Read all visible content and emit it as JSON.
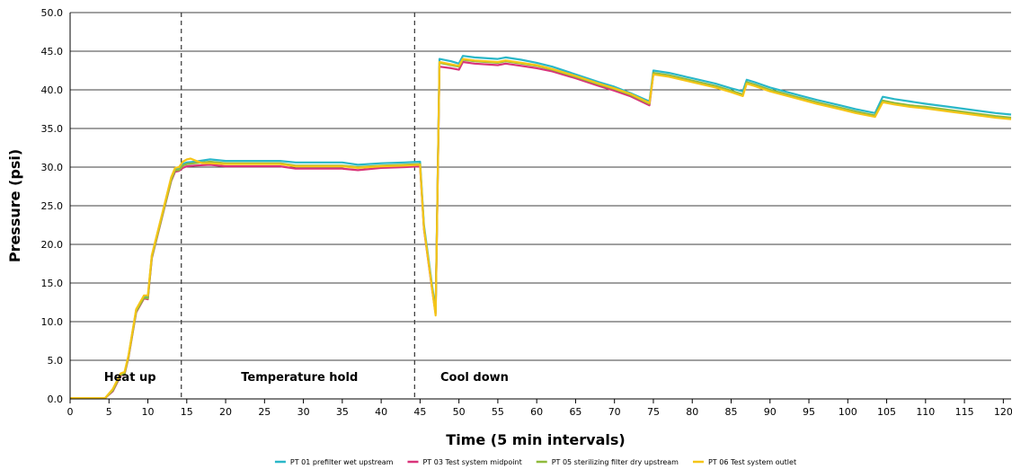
{
  "chart_data": {
    "type": "line",
    "xlabel": "Time (5 min intervals)",
    "ylabel": "Pressure (psi)",
    "xlim": [
      0,
      121
    ],
    "ylim": [
      0,
      50
    ],
    "x_ticks": [
      "0",
      "5",
      "10",
      "15",
      "20",
      "25",
      "30",
      "35",
      "40",
      "45",
      "50",
      "55",
      "60",
      "65",
      "70",
      "75",
      "80",
      "85",
      "90",
      "95",
      "100",
      "105",
      "110",
      "115",
      "120"
    ],
    "y_ticks": [
      "0.0",
      "5.0",
      "10.0",
      "15.0",
      "20.0",
      "25.0",
      "30.0",
      "35.0",
      "40.0",
      "45.0",
      "50.0"
    ],
    "grid": "horizontal",
    "legend_position": "bottom",
    "phase_dividers": [
      14.3,
      44.3
    ],
    "phase_labels": [
      {
        "text": "Heat up",
        "x": 7.7,
        "y": 2.3
      },
      {
        "text": "Temperature hold",
        "x": 29.5,
        "y": 2.3
      },
      {
        "text": "Cool down",
        "x": 52,
        "y": 2.3
      }
    ],
    "series": [
      {
        "name": "PT 01 prefilter wet upstream",
        "color": "#2ab7c8",
        "points": [
          [
            0,
            0.1
          ],
          [
            4.5,
            0.1
          ],
          [
            5.5,
            1.2
          ],
          [
            6.5,
            3.2
          ],
          [
            7,
            3.4
          ],
          [
            7.5,
            5.5
          ],
          [
            8.5,
            11.5
          ],
          [
            9.5,
            13.3
          ],
          [
            10,
            13.2
          ],
          [
            10.5,
            18.5
          ],
          [
            11.5,
            22.5
          ],
          [
            12,
            24.5
          ],
          [
            13,
            28.5
          ],
          [
            13.5,
            29.8
          ],
          [
            14,
            29.8
          ],
          [
            14.5,
            30.4
          ],
          [
            15,
            30.6
          ],
          [
            16,
            30.7
          ],
          [
            18,
            31
          ],
          [
            20,
            30.8
          ],
          [
            22,
            30.8
          ],
          [
            25,
            30.8
          ],
          [
            27,
            30.8
          ],
          [
            29,
            30.6
          ],
          [
            32,
            30.6
          ],
          [
            35,
            30.6
          ],
          [
            37,
            30.3
          ],
          [
            40,
            30.5
          ],
          [
            43,
            30.6
          ],
          [
            45,
            30.7
          ],
          [
            45.5,
            22.5
          ],
          [
            46.5,
            15
          ],
          [
            47,
            11.5
          ],
          [
            47.5,
            44.0
          ],
          [
            49,
            43.7
          ],
          [
            50,
            43.4
          ],
          [
            50.5,
            44.4
          ],
          [
            52,
            44.2
          ],
          [
            55,
            44.0
          ],
          [
            56,
            44.2
          ],
          [
            58,
            43.9
          ],
          [
            60,
            43.5
          ],
          [
            62,
            43.0
          ],
          [
            65,
            42.0
          ],
          [
            68,
            41.0
          ],
          [
            70,
            40.4
          ],
          [
            72,
            39.6
          ],
          [
            74.5,
            38.5
          ],
          [
            75,
            42.5
          ],
          [
            77,
            42.2
          ],
          [
            80,
            41.5
          ],
          [
            83,
            40.8
          ],
          [
            85,
            40.2
          ],
          [
            86.5,
            39.8
          ],
          [
            87,
            41.3
          ],
          [
            88,
            41.0
          ],
          [
            90,
            40.3
          ],
          [
            93,
            39.5
          ],
          [
            96,
            38.7
          ],
          [
            99,
            38.0
          ],
          [
            101,
            37.5
          ],
          [
            103.5,
            37.0
          ],
          [
            104.5,
            39.1
          ],
          [
            106,
            38.8
          ],
          [
            108,
            38.5
          ],
          [
            110,
            38.2
          ],
          [
            113,
            37.8
          ],
          [
            116,
            37.4
          ],
          [
            119,
            37.0
          ],
          [
            121,
            36.8
          ]
        ]
      },
      {
        "name": "PT 03 Test system midpoint",
        "color": "#d9337a",
        "points": [
          [
            0,
            0.1
          ],
          [
            4.5,
            0.1
          ],
          [
            5.5,
            1.0
          ],
          [
            6.5,
            3.0
          ],
          [
            7,
            3.2
          ],
          [
            7.5,
            5.3
          ],
          [
            8.5,
            11.2
          ],
          [
            9.5,
            13.0
          ],
          [
            10,
            12.9
          ],
          [
            10.5,
            18.2
          ],
          [
            11.5,
            22.2
          ],
          [
            12,
            24.2
          ],
          [
            13,
            28.2
          ],
          [
            13.5,
            29.4
          ],
          [
            14,
            29.5
          ],
          [
            14.5,
            29.9
          ],
          [
            15,
            30.1
          ],
          [
            16,
            30.2
          ],
          [
            18,
            30.3
          ],
          [
            20,
            30.1
          ],
          [
            22,
            30.1
          ],
          [
            25,
            30.1
          ],
          [
            27,
            30.1
          ],
          [
            29,
            29.8
          ],
          [
            32,
            29.8
          ],
          [
            35,
            29.8
          ],
          [
            37,
            29.6
          ],
          [
            40,
            29.9
          ],
          [
            43,
            30.0
          ],
          [
            45,
            30.1
          ],
          [
            45.5,
            22.0
          ],
          [
            46.5,
            14.5
          ],
          [
            47,
            11.0
          ],
          [
            47.5,
            43.0
          ],
          [
            49,
            42.8
          ],
          [
            50,
            42.6
          ],
          [
            50.5,
            43.6
          ],
          [
            52,
            43.4
          ],
          [
            55,
            43.2
          ],
          [
            56,
            43.4
          ],
          [
            58,
            43.1
          ],
          [
            60,
            42.8
          ],
          [
            62,
            42.4
          ],
          [
            65,
            41.5
          ],
          [
            68,
            40.5
          ],
          [
            70,
            39.9
          ],
          [
            72,
            39.2
          ],
          [
            74.5,
            38.0
          ],
          [
            75,
            42.1
          ],
          [
            77,
            41.8
          ],
          [
            80,
            41.1
          ],
          [
            83,
            40.4
          ],
          [
            85,
            39.8
          ],
          [
            86.5,
            39.3
          ],
          [
            87,
            40.9
          ],
          [
            88,
            40.6
          ],
          [
            90,
            39.9
          ],
          [
            93,
            39.1
          ],
          [
            96,
            38.3
          ],
          [
            99,
            37.6
          ],
          [
            101,
            37.1
          ],
          [
            103.5,
            36.6
          ],
          [
            104.5,
            38.5
          ],
          [
            106,
            38.2
          ],
          [
            108,
            37.9
          ],
          [
            110,
            37.7
          ],
          [
            113,
            37.3
          ],
          [
            116,
            36.9
          ],
          [
            119,
            36.5
          ],
          [
            121,
            36.3
          ]
        ]
      },
      {
        "name": "PT 05 sterilizing filter dry upstream",
        "color": "#8fba3c",
        "points": [
          [
            0,
            0.1
          ],
          [
            4.5,
            0.1
          ],
          [
            5.5,
            1.1
          ],
          [
            6.5,
            3.1
          ],
          [
            7,
            3.3
          ],
          [
            7.5,
            5.4
          ],
          [
            8.5,
            11.3
          ],
          [
            9.5,
            13.1
          ],
          [
            10,
            13.0
          ],
          [
            10.5,
            18.3
          ],
          [
            11.5,
            22.3
          ],
          [
            12,
            24.3
          ],
          [
            13,
            28.3
          ],
          [
            13.5,
            29.6
          ],
          [
            14,
            29.6
          ],
          [
            14.5,
            30.2
          ],
          [
            15,
            30.4
          ],
          [
            16,
            30.5
          ],
          [
            18,
            30.7
          ],
          [
            20,
            30.5
          ],
          [
            22,
            30.5
          ],
          [
            25,
            30.5
          ],
          [
            27,
            30.5
          ],
          [
            29,
            30.2
          ],
          [
            32,
            30.2
          ],
          [
            35,
            30.2
          ],
          [
            37,
            30.0
          ],
          [
            40,
            30.2
          ],
          [
            43,
            30.3
          ],
          [
            45,
            30.4
          ],
          [
            45.5,
            22.2
          ],
          [
            46.5,
            14.7
          ],
          [
            47,
            11.2
          ],
          [
            47.5,
            43.5
          ],
          [
            49,
            43.2
          ],
          [
            50,
            43.0
          ],
          [
            50.5,
            43.9
          ],
          [
            52,
            43.7
          ],
          [
            55,
            43.5
          ],
          [
            56,
            43.7
          ],
          [
            58,
            43.4
          ],
          [
            60,
            43.1
          ],
          [
            62,
            42.6
          ],
          [
            65,
            41.7
          ],
          [
            68,
            40.7
          ],
          [
            70,
            40.1
          ],
          [
            72,
            39.4
          ],
          [
            74.5,
            38.2
          ],
          [
            75,
            42.2
          ],
          [
            77,
            41.9
          ],
          [
            80,
            41.2
          ],
          [
            83,
            40.5
          ],
          [
            85,
            39.9
          ],
          [
            86.5,
            39.4
          ],
          [
            87,
            41.0
          ],
          [
            88,
            40.7
          ],
          [
            90,
            40.0
          ],
          [
            93,
            39.2
          ],
          [
            96,
            38.4
          ],
          [
            99,
            37.7
          ],
          [
            101,
            37.2
          ],
          [
            103.5,
            36.7
          ],
          [
            104.5,
            38.6
          ],
          [
            106,
            38.3
          ],
          [
            108,
            38.0
          ],
          [
            110,
            37.8
          ],
          [
            113,
            37.4
          ],
          [
            116,
            37.0
          ],
          [
            119,
            36.6
          ],
          [
            121,
            36.4
          ]
        ]
      },
      {
        "name": "PT 06 Test system outlet",
        "color": "#f5c518",
        "points": [
          [
            0,
            0.1
          ],
          [
            4.5,
            0.1
          ],
          [
            5.5,
            1.3
          ],
          [
            6.5,
            3.3
          ],
          [
            7,
            3.5
          ],
          [
            7.5,
            5.6
          ],
          [
            8.5,
            11.6
          ],
          [
            9.5,
            13.4
          ],
          [
            10,
            13.4
          ],
          [
            10.5,
            18.6
          ],
          [
            11.5,
            22.6
          ],
          [
            12,
            24.6
          ],
          [
            13,
            28.7
          ],
          [
            13.5,
            29.9
          ],
          [
            14,
            30.0
          ],
          [
            14.5,
            30.7
          ],
          [
            15,
            31.0
          ],
          [
            15.5,
            31.1
          ],
          [
            16,
            30.9
          ],
          [
            17,
            30.5
          ],
          [
            18,
            30.5
          ],
          [
            20,
            30.4
          ],
          [
            22,
            30.4
          ],
          [
            25,
            30.4
          ],
          [
            27,
            30.4
          ],
          [
            29,
            30.1
          ],
          [
            32,
            30.1
          ],
          [
            35,
            30.1
          ],
          [
            37,
            29.9
          ],
          [
            40,
            30.1
          ],
          [
            43,
            30.2
          ],
          [
            45,
            30.3
          ],
          [
            45.5,
            22.1
          ],
          [
            46.5,
            14.6
          ],
          [
            47,
            10.8
          ],
          [
            47.5,
            43.6
          ],
          [
            49,
            43.3
          ],
          [
            50,
            43.1
          ],
          [
            50.5,
            44.0
          ],
          [
            52,
            43.8
          ],
          [
            55,
            43.6
          ],
          [
            56,
            43.8
          ],
          [
            58,
            43.5
          ],
          [
            60,
            43.2
          ],
          [
            62,
            42.7
          ],
          [
            65,
            41.8
          ],
          [
            68,
            40.8
          ],
          [
            70,
            40.2
          ],
          [
            72,
            39.5
          ],
          [
            74.5,
            38.3
          ],
          [
            75,
            42.0
          ],
          [
            77,
            41.7
          ],
          [
            80,
            41.0
          ],
          [
            83,
            40.3
          ],
          [
            85,
            39.7
          ],
          [
            86.5,
            39.2
          ],
          [
            87,
            40.8
          ],
          [
            88,
            40.5
          ],
          [
            90,
            39.8
          ],
          [
            93,
            39.0
          ],
          [
            96,
            38.2
          ],
          [
            99,
            37.5
          ],
          [
            101,
            37.0
          ],
          [
            103.5,
            36.5
          ],
          [
            104.5,
            38.4
          ],
          [
            106,
            38.1
          ],
          [
            108,
            37.8
          ],
          [
            110,
            37.6
          ],
          [
            113,
            37.2
          ],
          [
            116,
            36.8
          ],
          [
            119,
            36.4
          ],
          [
            121,
            36.2
          ]
        ]
      }
    ]
  }
}
